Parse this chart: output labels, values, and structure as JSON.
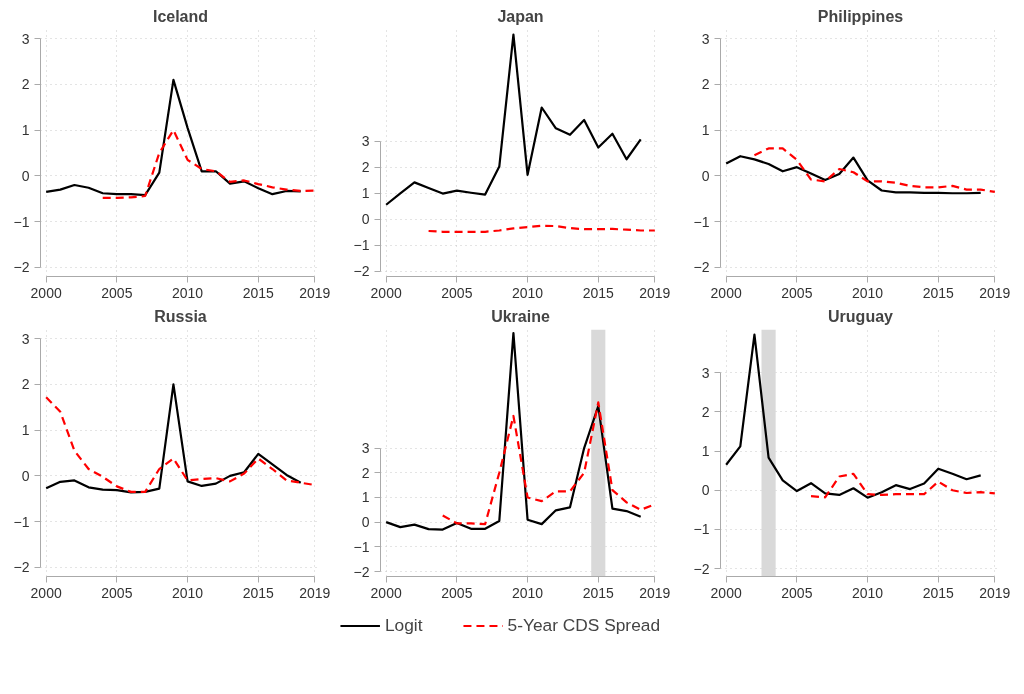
{
  "chart_data": [
    {
      "type": "line",
      "title": "Iceland",
      "xlim": [
        1999.6,
        2019.4
      ],
      "ylim": [
        -2.2,
        3.2
      ],
      "xticks": [
        2000,
        2005,
        2010,
        2015,
        2019
      ],
      "yticks": [
        -2,
        -1,
        0,
        1,
        2,
        3
      ],
      "grid": true,
      "legend": "bottom",
      "series": [
        {
          "name": "Logit",
          "color": "#000000",
          "line_style": "solid",
          "x": [
            2000,
            2001,
            2002,
            2003,
            2004,
            2005,
            2006,
            2007,
            2008,
            2009,
            2010,
            2011,
            2012,
            2013,
            2014,
            2015,
            2016,
            2017,
            2018
          ],
          "values": [
            -0.35,
            -0.3,
            -0.2,
            -0.26,
            -0.38,
            -0.4,
            -0.4,
            -0.42,
            0.07,
            2.1,
            1.05,
            0.1,
            0.1,
            -0.17,
            -0.12,
            -0.27,
            -0.4,
            -0.33,
            -0.34
          ]
        },
        {
          "name": "5-Year CDS Spread",
          "color": "#ff0000",
          "line_style": "dashed",
          "x": [
            2004,
            2005,
            2006,
            2007,
            2008,
            2009,
            2010,
            2011,
            2012,
            2013,
            2014,
            2015,
            2016,
            2017,
            2018,
            2019
          ],
          "values": [
            -0.48,
            -0.48,
            -0.47,
            -0.44,
            0.5,
            1.0,
            0.35,
            0.15,
            0.1,
            -0.13,
            -0.1,
            -0.18,
            -0.25,
            -0.3,
            -0.33,
            -0.32
          ]
        }
      ]
    },
    {
      "type": "line",
      "title": "Japan",
      "xlim": [
        1999.6,
        2019.4
      ],
      "ylim": [
        -2.2,
        7.3
      ],
      "xticks": [
        2000,
        2005,
        2010,
        2015,
        2019
      ],
      "yticks": [
        -2,
        -1,
        0,
        1,
        2,
        3
      ],
      "grid": true,
      "series": [
        {
          "color": "#000000",
          "line_style": "solid",
          "x": [
            2000,
            2001,
            2002,
            2003,
            2004,
            2005,
            2006,
            2007,
            2008,
            2009,
            2010,
            2011,
            2012,
            2013,
            2014,
            2015,
            2016,
            2017,
            2018
          ],
          "values": [
            0.56,
            1.0,
            1.42,
            1.2,
            0.99,
            1.1,
            1.02,
            0.95,
            2.03,
            7.1,
            1.71,
            4.3,
            3.5,
            3.25,
            3.82,
            2.76,
            3.29,
            2.31,
            3.07
          ]
        },
        {
          "color": "#ff0000",
          "line_style": "dashed",
          "x": [
            2003,
            2004,
            2005,
            2006,
            2007,
            2008,
            2009,
            2010,
            2011,
            2012,
            2013,
            2014,
            2015,
            2016,
            2017,
            2018,
            2019
          ],
          "values": [
            -0.45,
            -0.48,
            -0.48,
            -0.48,
            -0.48,
            -0.43,
            -0.35,
            -0.3,
            -0.25,
            -0.26,
            -0.34,
            -0.38,
            -0.38,
            -0.37,
            -0.4,
            -0.43,
            -0.43
          ]
        }
      ]
    },
    {
      "type": "line",
      "title": "Philippines",
      "xlim": [
        1999.6,
        2019.4
      ],
      "ylim": [
        -2.2,
        3.2
      ],
      "xticks": [
        2000,
        2005,
        2010,
        2015,
        2019
      ],
      "yticks": [
        -2,
        -1,
        0,
        1,
        2,
        3
      ],
      "grid": true,
      "series": [
        {
          "color": "#000000",
          "line_style": "solid",
          "x": [
            2000,
            2001,
            2002,
            2003,
            2004,
            2005,
            2006,
            2007,
            2008,
            2009,
            2010,
            2011,
            2012,
            2013,
            2014,
            2015,
            2016,
            2017,
            2018
          ],
          "values": [
            0.27,
            0.43,
            0.36,
            0.26,
            0.1,
            0.19,
            0.05,
            -0.09,
            0.04,
            0.4,
            -0.1,
            -0.32,
            -0.36,
            -0.36,
            -0.37,
            -0.37,
            -0.38,
            -0.38,
            -0.37
          ]
        },
        {
          "color": "#ff0000",
          "line_style": "dashed",
          "x": [
            2002,
            2003,
            2004,
            2005,
            2006,
            2007,
            2008,
            2009,
            2010,
            2011,
            2012,
            2013,
            2014,
            2015,
            2016,
            2017,
            2018,
            2019
          ],
          "values": [
            0.45,
            0.6,
            0.6,
            0.35,
            -0.08,
            -0.12,
            0.15,
            0.08,
            -0.12,
            -0.12,
            -0.15,
            -0.22,
            -0.25,
            -0.25,
            -0.22,
            -0.3,
            -0.3,
            -0.35
          ]
        }
      ]
    },
    {
      "type": "line",
      "title": "Russia",
      "xlim": [
        1999.6,
        2019.4
      ],
      "ylim": [
        -2.2,
        3.2
      ],
      "xticks": [
        2000,
        2005,
        2010,
        2015,
        2019
      ],
      "yticks": [
        -2,
        -1,
        0,
        1,
        2,
        3
      ],
      "grid": true,
      "series": [
        {
          "color": "#000000",
          "line_style": "solid",
          "x": [
            2000,
            2001,
            2002,
            2003,
            2004,
            2005,
            2006,
            2007,
            2008,
            2009,
            2010,
            2011,
            2012,
            2013,
            2014,
            2015,
            2016,
            2017,
            2018
          ],
          "values": [
            -0.27,
            -0.13,
            -0.1,
            -0.25,
            -0.3,
            -0.31,
            -0.36,
            -0.35,
            -0.28,
            2.0,
            -0.12,
            -0.22,
            -0.17,
            0.0,
            0.08,
            0.48,
            0.25,
            0.02,
            -0.15
          ]
        },
        {
          "color": "#ff0000",
          "line_style": "dashed",
          "x": [
            2000,
            2001,
            2002,
            2003,
            2004,
            2005,
            2006,
            2007,
            2008,
            2009,
            2010,
            2011,
            2012,
            2013,
            2014,
            2015,
            2016,
            2017,
            2018,
            2019
          ],
          "values": [
            1.72,
            1.4,
            0.55,
            0.15,
            -0.02,
            -0.23,
            -0.35,
            -0.35,
            0.15,
            0.38,
            -0.1,
            -0.07,
            -0.05,
            -0.12,
            0.05,
            0.38,
            0.15,
            -0.1,
            -0.15,
            -0.2
          ]
        }
      ]
    },
    {
      "type": "line",
      "title": "Ukraine",
      "xlim": [
        1999.6,
        2019.4
      ],
      "ylim": [
        -2.2,
        7.8
      ],
      "xticks": [
        2000,
        2005,
        2010,
        2015,
        2019
      ],
      "yticks": [
        -2,
        -1,
        0,
        1,
        2,
        3
      ],
      "grid": true,
      "bands": [
        {
          "axis": "x",
          "from": 2014.5,
          "to": 2015.5,
          "color": "#d9d9d9"
        }
      ],
      "series": [
        {
          "color": "#000000",
          "line_style": "solid",
          "x": [
            2000,
            2001,
            2002,
            2003,
            2004,
            2005,
            2006,
            2007,
            2008,
            2009,
            2010,
            2011,
            2012,
            2013,
            2014,
            2015,
            2016,
            2017,
            2018
          ],
          "values": [
            0.0,
            -0.2,
            -0.1,
            -0.28,
            -0.3,
            -0.03,
            -0.27,
            -0.27,
            0.05,
            7.65,
            0.1,
            -0.08,
            0.48,
            0.6,
            3.0,
            4.7,
            0.55,
            0.45,
            0.22
          ]
        },
        {
          "color": "#ff0000",
          "line_style": "dashed",
          "x": [
            2004,
            2005,
            2006,
            2007,
            2008,
            2009,
            2010,
            2011,
            2012,
            2013,
            2014,
            2015,
            2016,
            2017,
            2018,
            2019
          ],
          "values": [
            0.27,
            -0.05,
            -0.05,
            -0.08,
            2.0,
            4.3,
            1.0,
            0.85,
            1.25,
            1.25,
            2.0,
            4.85,
            1.3,
            0.8,
            0.5,
            0.72
          ]
        }
      ]
    },
    {
      "type": "line",
      "title": "Uruguay",
      "xlim": [
        1999.6,
        2019.4
      ],
      "ylim": [
        -2.2,
        4.1
      ],
      "xticks": [
        2000,
        2005,
        2010,
        2015,
        2019
      ],
      "yticks": [
        -2,
        -1,
        0,
        1,
        2,
        3
      ],
      "grid": true,
      "bands": [
        {
          "axis": "x",
          "from": 2002.5,
          "to": 2003.5,
          "color": "#d9d9d9"
        }
      ],
      "series": [
        {
          "color": "#000000",
          "line_style": "solid",
          "x": [
            2000,
            2001,
            2002,
            2003,
            2004,
            2005,
            2006,
            2007,
            2008,
            2009,
            2010,
            2011,
            2012,
            2013,
            2014,
            2015,
            2016,
            2017,
            2018
          ],
          "values": [
            0.65,
            1.12,
            3.97,
            0.83,
            0.25,
            -0.02,
            0.18,
            -0.08,
            -0.12,
            0.05,
            -0.19,
            -0.05,
            0.13,
            0.03,
            0.17,
            0.55,
            0.42,
            0.28,
            0.38
          ]
        },
        {
          "color": "#ff0000",
          "line_style": "dashed",
          "x": [
            2006,
            2007,
            2008,
            2009,
            2010,
            2011,
            2012,
            2013,
            2014,
            2015,
            2016,
            2017,
            2018,
            2019
          ],
          "values": [
            -0.15,
            -0.18,
            0.35,
            0.42,
            -0.1,
            -0.12,
            -0.1,
            -0.1,
            -0.1,
            0.22,
            0.0,
            -0.07,
            -0.05,
            -0.08
          ]
        }
      ]
    }
  ]
}
